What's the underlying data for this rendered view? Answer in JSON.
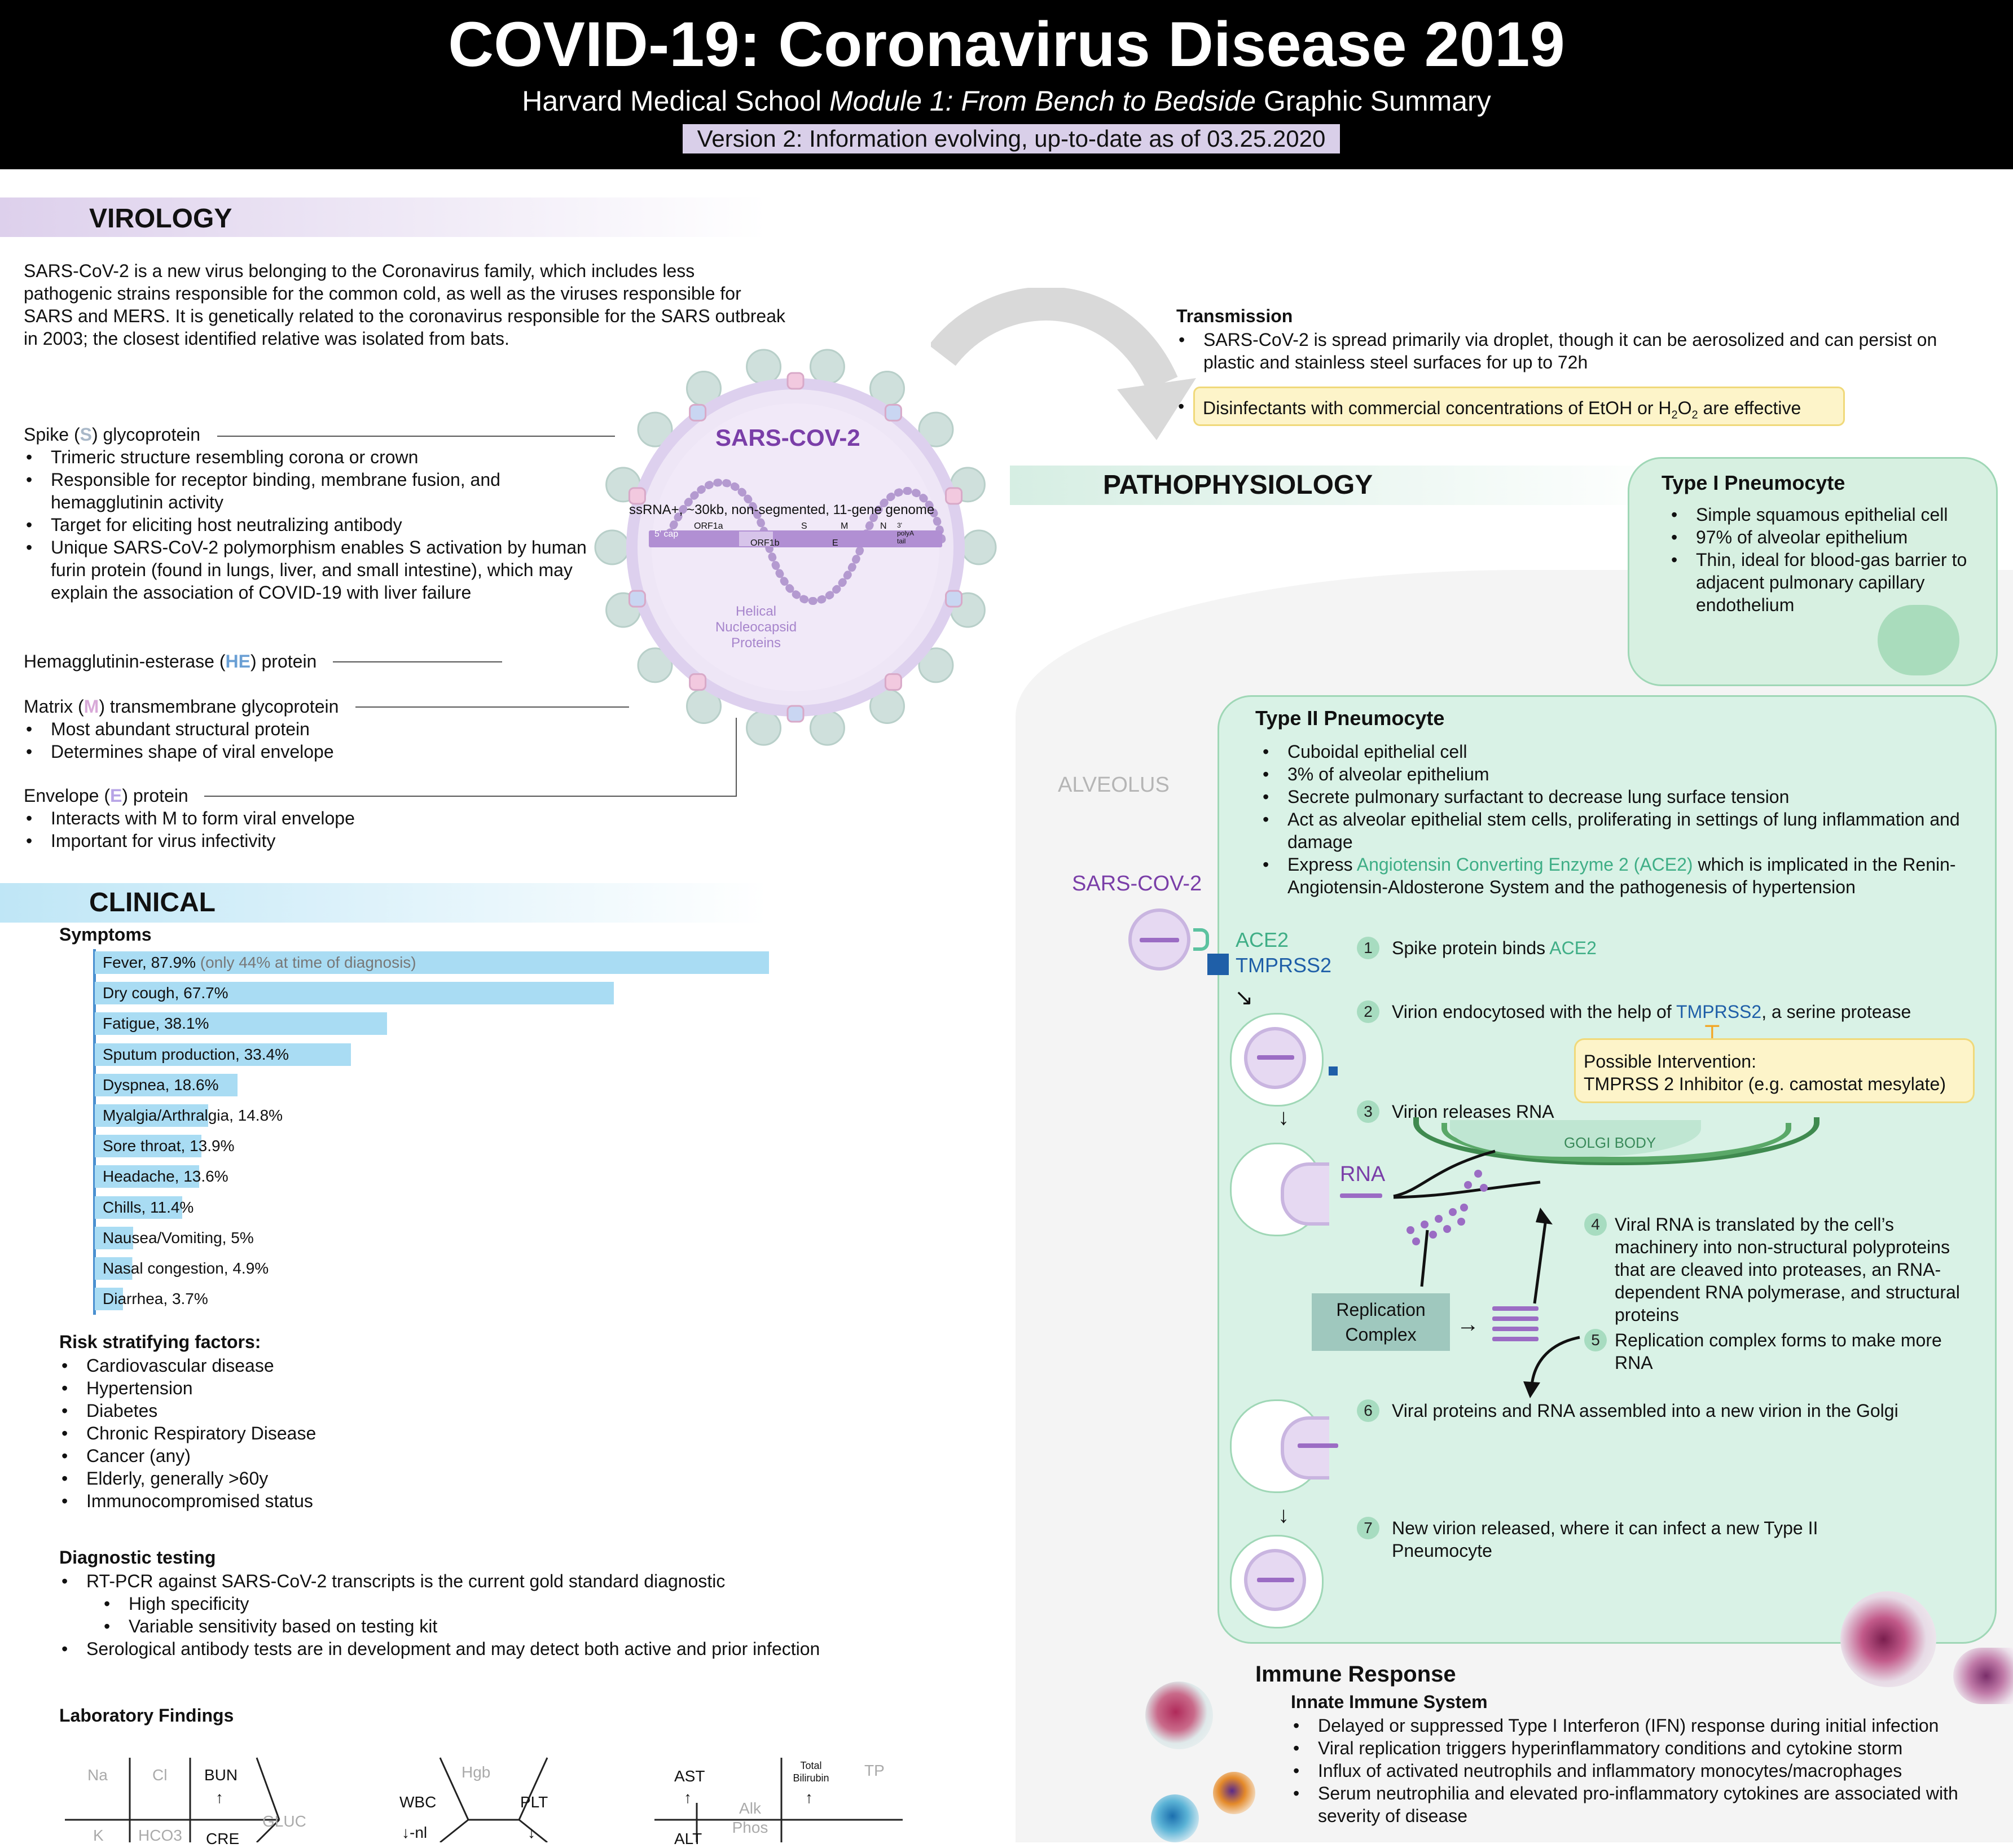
{
  "header": {
    "title": "COVID-19: Coronavirus Disease 2019",
    "subtitle_part1": "Harvard Medical School ",
    "subtitle_italic": "Module 1: From Bench to Bedside",
    "subtitle_part2": " Graphic Summary",
    "version": "Version 2: Information evolving, up-to-date as of 03.25.2020"
  },
  "virology": {
    "title": "VIROLOGY",
    "intro": "SARS-CoV-2 is a new virus belonging to the Coronavirus family, which includes less pathogenic strains responsible for the common cold, as well as the viruses responsible for SARS and MERS. It is genetically related to the coronavirus responsible for the SARS outbreak in 2003; the closest identified relative was isolated from bats.",
    "spike_label_pre": "Spike (",
    "spike_letter": "S",
    "spike_label_post": ") glycoprotein",
    "spike_bullets": [
      "Trimeric structure resembling corona or crown",
      "Responsible for receptor binding, membrane fusion, and hemagglutinin activity",
      "Target for eliciting host neutralizing antibody",
      "Unique SARS-CoV-2 polymorphism enables S activation by human furin protein (found in lungs, liver, and small intestine), which may explain the association of COVID-19 with liver failure"
    ],
    "he_label_pre": "Hemagglutinin-esterase (",
    "he_letter": "HE",
    "he_label_post": ") protein",
    "m_label_pre": "Matrix (",
    "m_letter": "M",
    "m_label_post": ") transmembrane glycoprotein",
    "m_bullets": [
      "Most abundant structural protein",
      "Determines shape of viral envelope"
    ],
    "e_label_pre": "Envelope (",
    "e_letter": "E",
    "e_label_post": ") protein",
    "e_bullets": [
      "Interacts with M to form viral envelope",
      "Important for virus infectivity"
    ],
    "virus_name": "SARS-COV-2",
    "genome_label": "ssRNA+, ~30kb, non-segmented, 11-gene genome",
    "genome_segments": [
      "5' cap",
      "ORF1a",
      "ORF1b",
      "S",
      "E",
      "M",
      "N",
      "3' polyA tail"
    ],
    "nucleocapsid_label": "Helical Nucleocapsid Proteins"
  },
  "transmission": {
    "title": "Transmission",
    "bullet1": "SARS-CoV-2 is spread primarily via droplet, though it can be aerosolized and can persist on plastic and stainless steel surfaces for up to 72h",
    "bullet2_pre": "Disinfectants with commercial concentrations of EtOH or H",
    "bullet2_sub1": "2",
    "bullet2_mid": "O",
    "bullet2_sub2": "2",
    "bullet2_post": " are effective"
  },
  "clinical": {
    "title": "CLINICAL",
    "symptoms_title": "Symptoms",
    "symptoms": [
      {
        "label": "Fever, 87.9%",
        "note": " (only 44% at time of diagnosis)",
        "value": 87.9
      },
      {
        "label": "Dry cough, 67.7%",
        "note": "",
        "value": 67.7
      },
      {
        "label": "Fatigue, 38.1%",
        "note": "",
        "value": 38.1
      },
      {
        "label": "Sputum production, 33.4%",
        "note": "",
        "value": 33.4
      },
      {
        "label": "Dyspnea, 18.6%",
        "note": "",
        "value": 18.6
      },
      {
        "label": "Myalgia/Arthralgia, 14.8%",
        "note": "",
        "value": 14.8
      },
      {
        "label": "Sore throat, 13.9%",
        "note": "",
        "value": 13.9
      },
      {
        "label": "Headache, 13.6%",
        "note": "",
        "value": 13.6
      },
      {
        "label": "Chills, 11.4%",
        "note": "",
        "value": 11.4
      },
      {
        "label": "Nausea/Vomiting, 5%",
        "note": "",
        "value": 5
      },
      {
        "label": "Nasal congestion, 4.9%",
        "note": "",
        "value": 4.9
      },
      {
        "label": "Diarrhea, 3.7%",
        "note": "",
        "value": 3.7
      }
    ],
    "risk_title": "Risk stratifying factors:",
    "risk_factors": [
      "Cardiovascular disease",
      "Hypertension",
      "Diabetes",
      "Chronic Respiratory Disease",
      "Cancer (any)",
      "Elderly, generally >60y",
      "Immunocompromised status"
    ],
    "diag_title": "Diagnostic testing",
    "diag_1": "RT-PCR against SARS-CoV-2 transcripts is the current gold standard diagnostic",
    "diag_1a": "High specificity",
    "diag_1b": "Variable sensitivity based on testing kit",
    "diag_2": "Serological antibody tests are in development and may detect both active and prior infection",
    "lab_title": "Laboratory Findings",
    "lab": {
      "na": "Na",
      "cl": "Cl",
      "bun": "BUN",
      "bun_arrow": "↑",
      "gluc": "GLUC",
      "k": "K",
      "hco3": "HCO3",
      "cre": "CRE",
      "hgb": "Hgb",
      "wbc": "WBC",
      "wbc_val": "↓-nl",
      "plt": "PLT",
      "plt_arrow": "↓",
      "ast": "AST",
      "ast_arrow": "↑",
      "alt": "ALT",
      "tbili": "Total Bilirubin",
      "tbili_arrow": "↑",
      "tp": "TP",
      "alkphos": "Alk Phos"
    }
  },
  "patho": {
    "title": "PATHOPHYSIOLOGY",
    "alveolus": "ALVEOLUS",
    "virus_label": "SARS-COV-2",
    "ace2": "ACE2",
    "tmprss2": "TMPRSS2",
    "type1": {
      "title": "Type I Pneumocyte",
      "bullets": [
        "Simple squamous epithelial cell",
        "97% of alveolar epithelium",
        "Thin, ideal for blood-gas barrier to adjacent pulmonary capillary endothelium"
      ]
    },
    "type2": {
      "title": "Type II Pneumocyte",
      "bullets": [
        "Cuboidal epithelial cell",
        "3% of alveolar epithelium",
        "Secrete pulmonary surfactant to decrease lung surface tension",
        "Act as alveolar epithelial stem cells, proliferating in settings of lung inflammation and damage"
      ],
      "ace_bullet_pre": "Express ",
      "ace_bullet_hl": "Angiotensin Converting Enzyme 2 (ACE2)",
      "ace_bullet_post": " which is implicated in the Renin-Angiotensin-Aldosterone System and the pathogenesis of hypertension"
    },
    "steps": [
      {
        "n": "1",
        "pre": "Spike protein binds ",
        "hl": "ACE2",
        "post": ""
      },
      {
        "n": "2",
        "pre": "Virion endocytosed with the help of ",
        "hl": "TMPRSS2",
        "post": ", a serine protease"
      },
      {
        "n": "3",
        "pre": "Virion releases RNA",
        "hl": "",
        "post": ""
      },
      {
        "n": "4",
        "pre": "Viral RNA is translated by the cell’s machinery into non-structural polyproteins that are cleaved into proteases, an RNA-dependent RNA polymerase, and structural proteins",
        "hl": "",
        "post": ""
      },
      {
        "n": "5",
        "pre": "Replication complex forms to make more RNA",
        "hl": "",
        "post": ""
      },
      {
        "n": "6",
        "pre": "Viral proteins and RNA assembled into a new virion in the Golgi",
        "hl": "",
        "post": ""
      },
      {
        "n": "7",
        "pre": "New virion released, where it can infect a new Type II Pneumocyte",
        "hl": "",
        "post": ""
      }
    ],
    "intervention_title": "Possible Intervention:",
    "intervention_text": "TMPRSS 2 Inhibitor (e.g. camostat mesylate)",
    "golgi": "GOLGI BODY",
    "rna": "RNA",
    "replication": "Replication Complex"
  },
  "immune": {
    "title": "Immune Response",
    "subtitle": "Innate Immune System",
    "bullets": [
      "Delayed or suppressed  Type I Interferon (IFN) response during initial infection",
      "Viral replication triggers hyperinflammatory conditions and cytokine storm",
      "Influx of activated neutrophils and inflammatory monocytes/macrophages",
      "Serum neutrophilia and elevated pro-inflammatory cytokines are associated with severity of disease"
    ]
  },
  "colors": {
    "accent_purple": "#7a3ea8",
    "accent_green": "#3fae86",
    "accent_blue": "#1f5fa8",
    "virology_bar": "#e6dcf0",
    "clinical_bar": "#bfe6f6",
    "patho_bar": "#d6eee3"
  }
}
